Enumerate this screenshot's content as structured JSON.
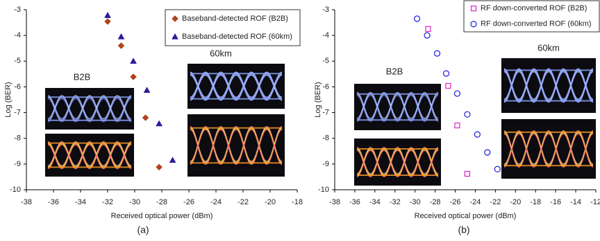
{
  "chart_data": [
    {
      "type": "scatter",
      "caption": "(a)",
      "x_label": "Received optical power (dBm)",
      "y_label": "Log (BER)",
      "xlim": [
        -38,
        -18
      ],
      "xticks": [
        -38,
        -36,
        -34,
        -32,
        -30,
        -28,
        -26,
        -24,
        -22,
        -20,
        -18
      ],
      "ylim": [
        -10,
        -3
      ],
      "yticks": [
        -3,
        -4,
        -5,
        -6,
        -7,
        -8,
        -9,
        -10
      ],
      "legend": "upper right",
      "series": [
        {
          "name": "Baseband-detected ROF (B2B)",
          "color": "#b0421c",
          "marker": "diamond",
          "filled": true,
          "x": [
            -32,
            -31,
            -30.1,
            -29.2,
            -28.2
          ],
          "values": [
            -3.46,
            -4.4,
            -5.61,
            -7.2,
            -9.12
          ]
        },
        {
          "name": "Baseband-detected ROF (60km)",
          "color": "#2e1b9b",
          "marker": "triangle",
          "filled": true,
          "x": [
            -32,
            -31,
            -30.1,
            -29.1,
            -28.2,
            -27.2
          ],
          "values": [
            -3.22,
            -4.05,
            -5.0,
            -6.13,
            -7.43,
            -8.85
          ]
        }
      ],
      "insets": [
        {
          "label": "B2B"
        },
        {
          "label": "60km"
        }
      ]
    },
    {
      "type": "scatter",
      "caption": "(b)",
      "x_label": "Received optical power (dBm)",
      "y_label": "Log (BER)",
      "xlim": [
        -38,
        -12
      ],
      "xticks": [
        -38,
        -36,
        -34,
        -32,
        -30,
        -28,
        -26,
        -24,
        -22,
        -20,
        -18,
        -16,
        -14,
        -12
      ],
      "ylim": [
        -10,
        -3
      ],
      "yticks": [
        -3,
        -4,
        -5,
        -6,
        -7,
        -8,
        -9,
        -10
      ],
      "legend": "upper right",
      "series": [
        {
          "name": "RF down-converted ROF (B2B)",
          "color": "#e020c0",
          "marker": "square",
          "filled": false,
          "x": [
            -28.7,
            -26.7,
            -25.8,
            -24.8
          ],
          "values": [
            -3.75,
            -5.96,
            -7.5,
            -9.38
          ]
        },
        {
          "name": "RF down-converted ROF (60km)",
          "color": "#1a1ae0",
          "marker": "circle",
          "filled": false,
          "x": [
            -29.8,
            -28.8,
            -27.8,
            -26.9,
            -25.8,
            -24.8,
            -23.8,
            -22.8,
            -21.8
          ],
          "values": [
            -3.35,
            -4.0,
            -4.7,
            -5.48,
            -6.26,
            -7.07,
            -7.85,
            -8.55,
            -9.2
          ]
        }
      ],
      "insets": [
        {
          "label": "B2B"
        },
        {
          "label": "60km"
        }
      ]
    }
  ]
}
